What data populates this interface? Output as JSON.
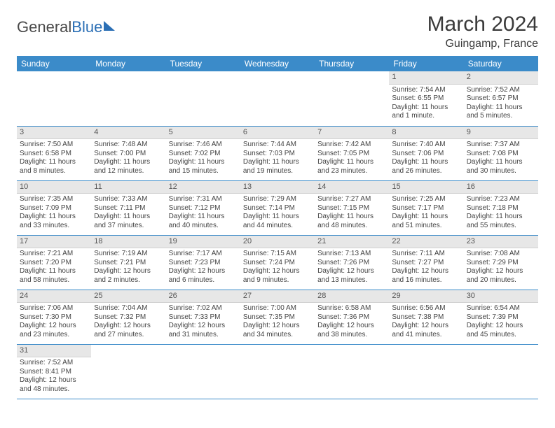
{
  "logo": {
    "part1": "General",
    "part2": "Blue"
  },
  "title": "March 2024",
  "location": "Guingamp, France",
  "colors": {
    "header_bg": "#3b8bc9",
    "header_text": "#ffffff",
    "daynum_bg": "#e7e7e7",
    "cell_border": "#3b8bc9",
    "logo_accent": "#2b6fb5"
  },
  "weekdays": [
    "Sunday",
    "Monday",
    "Tuesday",
    "Wednesday",
    "Thursday",
    "Friday",
    "Saturday"
  ],
  "cells": [
    {
      "day": "",
      "sunrise": "",
      "sunset": "",
      "daylight1": "",
      "daylight2": ""
    },
    {
      "day": "",
      "sunrise": "",
      "sunset": "",
      "daylight1": "",
      "daylight2": ""
    },
    {
      "day": "",
      "sunrise": "",
      "sunset": "",
      "daylight1": "",
      "daylight2": ""
    },
    {
      "day": "",
      "sunrise": "",
      "sunset": "",
      "daylight1": "",
      "daylight2": ""
    },
    {
      "day": "",
      "sunrise": "",
      "sunset": "",
      "daylight1": "",
      "daylight2": ""
    },
    {
      "day": "1",
      "sunrise": "Sunrise: 7:54 AM",
      "sunset": "Sunset: 6:55 PM",
      "daylight1": "Daylight: 11 hours",
      "daylight2": "and 1 minute."
    },
    {
      "day": "2",
      "sunrise": "Sunrise: 7:52 AM",
      "sunset": "Sunset: 6:57 PM",
      "daylight1": "Daylight: 11 hours",
      "daylight2": "and 5 minutes."
    },
    {
      "day": "3",
      "sunrise": "Sunrise: 7:50 AM",
      "sunset": "Sunset: 6:58 PM",
      "daylight1": "Daylight: 11 hours",
      "daylight2": "and 8 minutes."
    },
    {
      "day": "4",
      "sunrise": "Sunrise: 7:48 AM",
      "sunset": "Sunset: 7:00 PM",
      "daylight1": "Daylight: 11 hours",
      "daylight2": "and 12 minutes."
    },
    {
      "day": "5",
      "sunrise": "Sunrise: 7:46 AM",
      "sunset": "Sunset: 7:02 PM",
      "daylight1": "Daylight: 11 hours",
      "daylight2": "and 15 minutes."
    },
    {
      "day": "6",
      "sunrise": "Sunrise: 7:44 AM",
      "sunset": "Sunset: 7:03 PM",
      "daylight1": "Daylight: 11 hours",
      "daylight2": "and 19 minutes."
    },
    {
      "day": "7",
      "sunrise": "Sunrise: 7:42 AM",
      "sunset": "Sunset: 7:05 PM",
      "daylight1": "Daylight: 11 hours",
      "daylight2": "and 23 minutes."
    },
    {
      "day": "8",
      "sunrise": "Sunrise: 7:40 AM",
      "sunset": "Sunset: 7:06 PM",
      "daylight1": "Daylight: 11 hours",
      "daylight2": "and 26 minutes."
    },
    {
      "day": "9",
      "sunrise": "Sunrise: 7:37 AM",
      "sunset": "Sunset: 7:08 PM",
      "daylight1": "Daylight: 11 hours",
      "daylight2": "and 30 minutes."
    },
    {
      "day": "10",
      "sunrise": "Sunrise: 7:35 AM",
      "sunset": "Sunset: 7:09 PM",
      "daylight1": "Daylight: 11 hours",
      "daylight2": "and 33 minutes."
    },
    {
      "day": "11",
      "sunrise": "Sunrise: 7:33 AM",
      "sunset": "Sunset: 7:11 PM",
      "daylight1": "Daylight: 11 hours",
      "daylight2": "and 37 minutes."
    },
    {
      "day": "12",
      "sunrise": "Sunrise: 7:31 AM",
      "sunset": "Sunset: 7:12 PM",
      "daylight1": "Daylight: 11 hours",
      "daylight2": "and 40 minutes."
    },
    {
      "day": "13",
      "sunrise": "Sunrise: 7:29 AM",
      "sunset": "Sunset: 7:14 PM",
      "daylight1": "Daylight: 11 hours",
      "daylight2": "and 44 minutes."
    },
    {
      "day": "14",
      "sunrise": "Sunrise: 7:27 AM",
      "sunset": "Sunset: 7:15 PM",
      "daylight1": "Daylight: 11 hours",
      "daylight2": "and 48 minutes."
    },
    {
      "day": "15",
      "sunrise": "Sunrise: 7:25 AM",
      "sunset": "Sunset: 7:17 PM",
      "daylight1": "Daylight: 11 hours",
      "daylight2": "and 51 minutes."
    },
    {
      "day": "16",
      "sunrise": "Sunrise: 7:23 AM",
      "sunset": "Sunset: 7:18 PM",
      "daylight1": "Daylight: 11 hours",
      "daylight2": "and 55 minutes."
    },
    {
      "day": "17",
      "sunrise": "Sunrise: 7:21 AM",
      "sunset": "Sunset: 7:20 PM",
      "daylight1": "Daylight: 11 hours",
      "daylight2": "and 58 minutes."
    },
    {
      "day": "18",
      "sunrise": "Sunrise: 7:19 AM",
      "sunset": "Sunset: 7:21 PM",
      "daylight1": "Daylight: 12 hours",
      "daylight2": "and 2 minutes."
    },
    {
      "day": "19",
      "sunrise": "Sunrise: 7:17 AM",
      "sunset": "Sunset: 7:23 PM",
      "daylight1": "Daylight: 12 hours",
      "daylight2": "and 6 minutes."
    },
    {
      "day": "20",
      "sunrise": "Sunrise: 7:15 AM",
      "sunset": "Sunset: 7:24 PM",
      "daylight1": "Daylight: 12 hours",
      "daylight2": "and 9 minutes."
    },
    {
      "day": "21",
      "sunrise": "Sunrise: 7:13 AM",
      "sunset": "Sunset: 7:26 PM",
      "daylight1": "Daylight: 12 hours",
      "daylight2": "and 13 minutes."
    },
    {
      "day": "22",
      "sunrise": "Sunrise: 7:11 AM",
      "sunset": "Sunset: 7:27 PM",
      "daylight1": "Daylight: 12 hours",
      "daylight2": "and 16 minutes."
    },
    {
      "day": "23",
      "sunrise": "Sunrise: 7:08 AM",
      "sunset": "Sunset: 7:29 PM",
      "daylight1": "Daylight: 12 hours",
      "daylight2": "and 20 minutes."
    },
    {
      "day": "24",
      "sunrise": "Sunrise: 7:06 AM",
      "sunset": "Sunset: 7:30 PM",
      "daylight1": "Daylight: 12 hours",
      "daylight2": "and 23 minutes."
    },
    {
      "day": "25",
      "sunrise": "Sunrise: 7:04 AM",
      "sunset": "Sunset: 7:32 PM",
      "daylight1": "Daylight: 12 hours",
      "daylight2": "and 27 minutes."
    },
    {
      "day": "26",
      "sunrise": "Sunrise: 7:02 AM",
      "sunset": "Sunset: 7:33 PM",
      "daylight1": "Daylight: 12 hours",
      "daylight2": "and 31 minutes."
    },
    {
      "day": "27",
      "sunrise": "Sunrise: 7:00 AM",
      "sunset": "Sunset: 7:35 PM",
      "daylight1": "Daylight: 12 hours",
      "daylight2": "and 34 minutes."
    },
    {
      "day": "28",
      "sunrise": "Sunrise: 6:58 AM",
      "sunset": "Sunset: 7:36 PM",
      "daylight1": "Daylight: 12 hours",
      "daylight2": "and 38 minutes."
    },
    {
      "day": "29",
      "sunrise": "Sunrise: 6:56 AM",
      "sunset": "Sunset: 7:38 PM",
      "daylight1": "Daylight: 12 hours",
      "daylight2": "and 41 minutes."
    },
    {
      "day": "30",
      "sunrise": "Sunrise: 6:54 AM",
      "sunset": "Sunset: 7:39 PM",
      "daylight1": "Daylight: 12 hours",
      "daylight2": "and 45 minutes."
    },
    {
      "day": "31",
      "sunrise": "Sunrise: 7:52 AM",
      "sunset": "Sunset: 8:41 PM",
      "daylight1": "Daylight: 12 hours",
      "daylight2": "and 48 minutes."
    },
    {
      "day": "",
      "sunrise": "",
      "sunset": "",
      "daylight1": "",
      "daylight2": ""
    },
    {
      "day": "",
      "sunrise": "",
      "sunset": "",
      "daylight1": "",
      "daylight2": ""
    },
    {
      "day": "",
      "sunrise": "",
      "sunset": "",
      "daylight1": "",
      "daylight2": ""
    },
    {
      "day": "",
      "sunrise": "",
      "sunset": "",
      "daylight1": "",
      "daylight2": ""
    },
    {
      "day": "",
      "sunrise": "",
      "sunset": "",
      "daylight1": "",
      "daylight2": ""
    },
    {
      "day": "",
      "sunrise": "",
      "sunset": "",
      "daylight1": "",
      "daylight2": ""
    }
  ]
}
